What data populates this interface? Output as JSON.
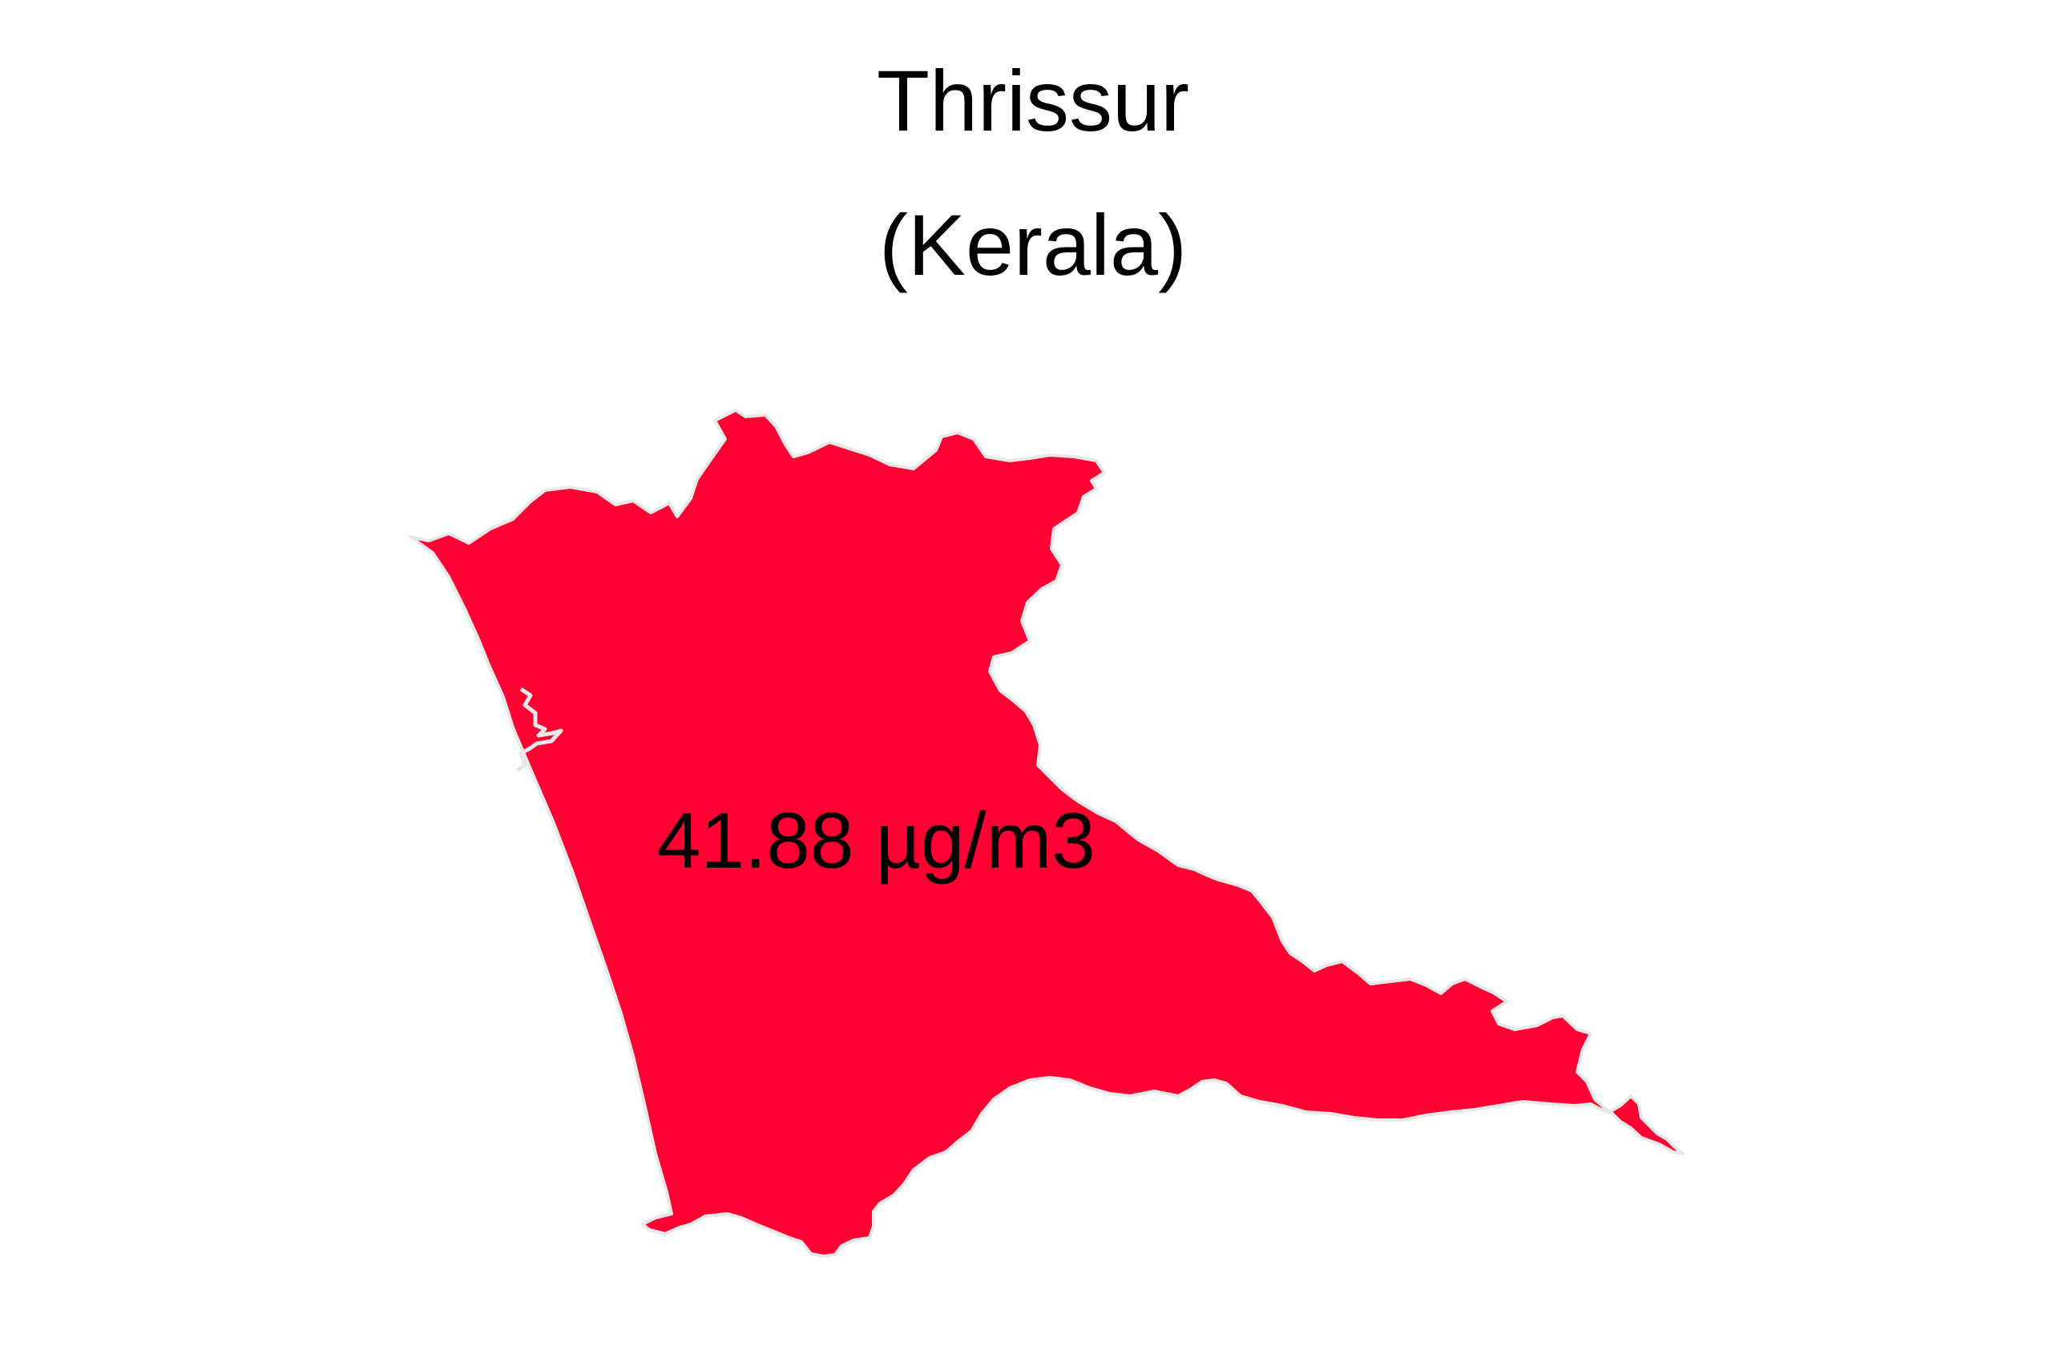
{
  "map": {
    "title": "Thrissur",
    "subtitle": "(Kerala)",
    "region": {
      "name": "Thrissur",
      "value_label": "41.88 µg/m3",
      "fill_color": "#FF0033",
      "border_color": "#E8E8E8"
    },
    "background_color": "#FFFFFF"
  }
}
